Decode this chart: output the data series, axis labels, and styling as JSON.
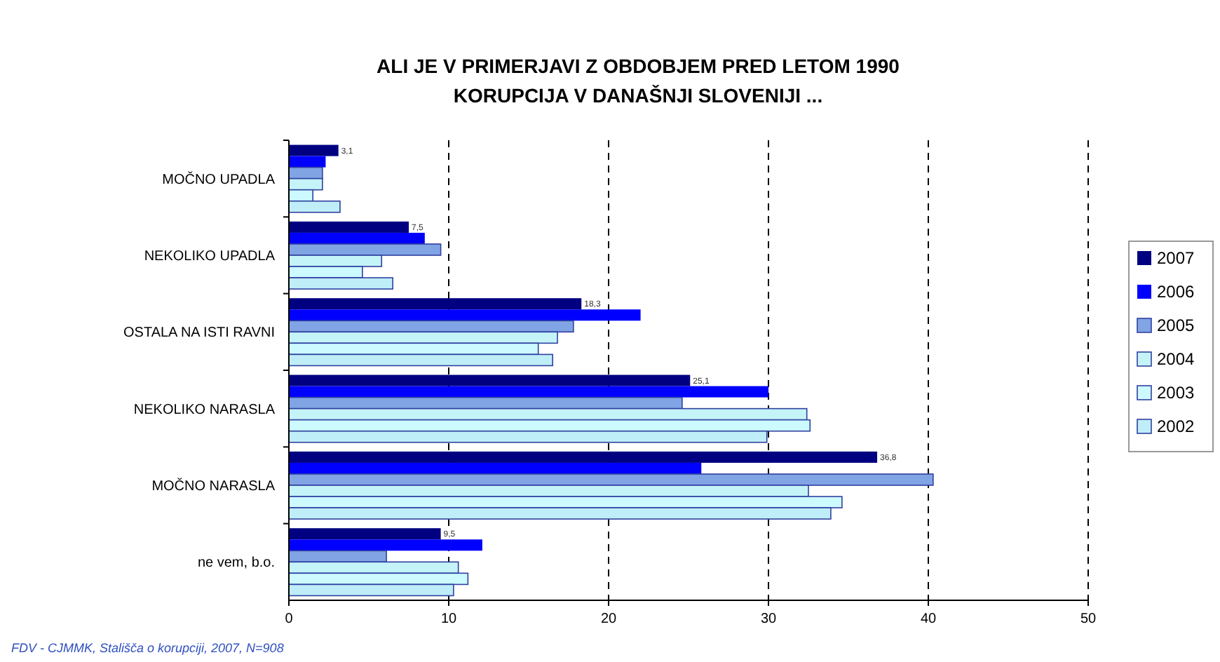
{
  "chart_data": {
    "type": "bar",
    "orientation": "horizontal",
    "title": "ALI JE V PRIMERJAVI Z OBDOBJEM PRED LETOM 1990\nKORUPCIJA V DANAŠNJI SLOVENIJI ...",
    "categories": [
      "MOČNO UPADLA",
      "NEKOLIKO UPADLA",
      "OSTALA NA ISTI RAVNI",
      "NEKOLIKO NARASLA",
      "MOČNO NARASLA",
      "ne vem, b.o."
    ],
    "series": [
      {
        "name": "2007",
        "color": "#000080",
        "values": [
          3.1,
          7.5,
          18.3,
          25.1,
          36.8,
          9.5
        ],
        "value_labels": [
          "3,1",
          "7,5",
          "18,3",
          "25,1",
          "36,8",
          "9,5"
        ]
      },
      {
        "name": "2006",
        "color": "#0000ff",
        "values": [
          2.3,
          8.5,
          22.0,
          30.0,
          25.8,
          12.1
        ]
      },
      {
        "name": "2005",
        "color": "#80a4e4",
        "values": [
          2.1,
          9.5,
          17.8,
          24.6,
          40.3,
          6.1
        ]
      },
      {
        "name": "2004",
        "color": "#c4f4f8",
        "values": [
          2.1,
          5.8,
          16.8,
          32.4,
          32.5,
          10.6
        ]
      },
      {
        "name": "2003",
        "color": "#ccfaff",
        "values": [
          1.5,
          4.6,
          15.6,
          32.6,
          34.6,
          11.2
        ]
      },
      {
        "name": "2002",
        "color": "#bfeef8",
        "values": [
          3.2,
          6.5,
          16.5,
          29.9,
          33.9,
          10.3
        ]
      }
    ],
    "xlim": [
      0,
      50
    ],
    "xticks": [
      0,
      10,
      20,
      30,
      40,
      50
    ],
    "grid": "x",
    "legend": "right",
    "annotations": [
      "FDV - CJMMK, Stališča o korupciji, 2007, N=908"
    ]
  }
}
